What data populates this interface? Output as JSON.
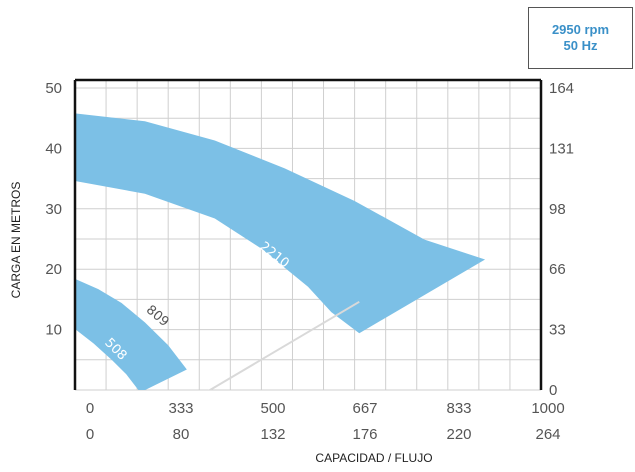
{
  "badge": {
    "speed": "2950 rpm",
    "frequency": "50 Hz"
  },
  "colors": {
    "band": "#7cc0e6",
    "grid": "#cfcfcf",
    "axis": "#111111",
    "badge_text": "#3a90c8",
    "connector": "#d9d9d9"
  },
  "chart_data": {
    "type": "area",
    "title": "",
    "xlabel": "CAPACIDAD / FLUJO",
    "ylabel": "CARGA EN METROS",
    "x_ticks_top": [
      "0",
      "333",
      "500",
      "667",
      "833",
      "1000"
    ],
    "x_ticks_bottom": [
      "0",
      "80",
      "132",
      "176",
      "220",
      "264"
    ],
    "y_ticks_left": [
      "50",
      "40",
      "30",
      "20",
      "10"
    ],
    "y_ticks_right": [
      "164",
      "131",
      "98",
      "66",
      "33",
      "0"
    ],
    "xlim": [
      0,
      1000
    ],
    "ylim": [
      0,
      50
    ],
    "grid": true,
    "series": [
      {
        "name": "508",
        "upper": [
          [
            0,
            18.4
          ],
          [
            50,
            16.7
          ],
          [
            100,
            14.4
          ],
          [
            150,
            11.2
          ],
          [
            200,
            7.4
          ],
          [
            240,
            3.4
          ]
        ],
        "lower": [
          [
            0,
            10.1
          ],
          [
            40,
            7.7
          ],
          [
            80,
            4.9
          ],
          [
            110,
            2.6
          ],
          [
            140,
            -0.4
          ]
        ]
      },
      {
        "name": "2210",
        "upper": [
          [
            0,
            45.8
          ],
          [
            150,
            44.5
          ],
          [
            300,
            41.3
          ],
          [
            450,
            36.7
          ],
          [
            600,
            31.3
          ],
          [
            750,
            24.9
          ],
          [
            880,
            21.6
          ]
        ],
        "lower": [
          [
            0,
            34.6
          ],
          [
            150,
            32.5
          ],
          [
            300,
            28.4
          ],
          [
            400,
            23.4
          ],
          [
            500,
            17.1
          ],
          [
            550,
            12.9
          ],
          [
            610,
            9.4
          ]
        ]
      },
      {
        "name": "809",
        "upper": [
          [
            270,
            -0.9
          ],
          [
            610,
            14.6
          ]
        ],
        "lower": [
          [
            270,
            -0.9
          ],
          [
            610,
            14.6
          ]
        ]
      }
    ]
  }
}
